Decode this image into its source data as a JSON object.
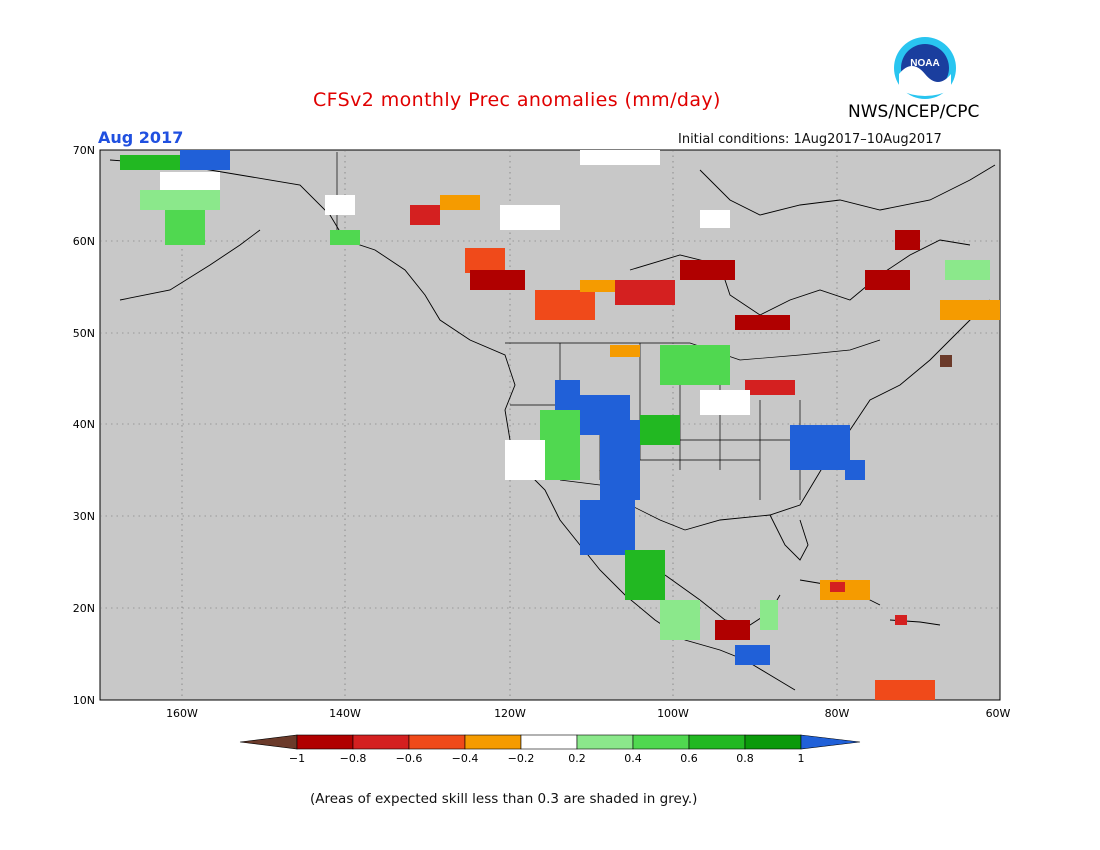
{
  "title": "CFSv2 monthly Prec anomalies (mm/day)",
  "month_label": "Aug 2017",
  "initial_conditions": "Initial conditions: 1Aug2017–10Aug2017",
  "agency": "NWS/NCEP/CPC",
  "logo_text": "NOAA",
  "skill_note": "(Areas of expected skill less than 0.3 are shaded in grey.)",
  "colors": {
    "title": "#e00000",
    "month": "#2050e0",
    "low_skill_grey": "#c8c8c8",
    "ocean": "#c8c8c8"
  },
  "map": {
    "lon_ticks": [
      "160W",
      "140W",
      "120W",
      "100W",
      "80W",
      "60W"
    ],
    "lat_ticks": [
      "70N",
      "60N",
      "50N",
      "40N",
      "30N",
      "20N",
      "10N"
    ]
  },
  "colorbar": {
    "labels": [
      "−1",
      "−0.8",
      "−0.6",
      "−0.4",
      "−0.2",
      "0.2",
      "0.4",
      "0.6",
      "0.8",
      "1"
    ],
    "colors": [
      "#6b3a2a",
      "#b00000",
      "#d42020",
      "#f04a1a",
      "#f59b00",
      "#ffffff",
      "#8be88b",
      "#50d850",
      "#22b822",
      "#0a9a0a",
      "#2060d8"
    ]
  }
}
